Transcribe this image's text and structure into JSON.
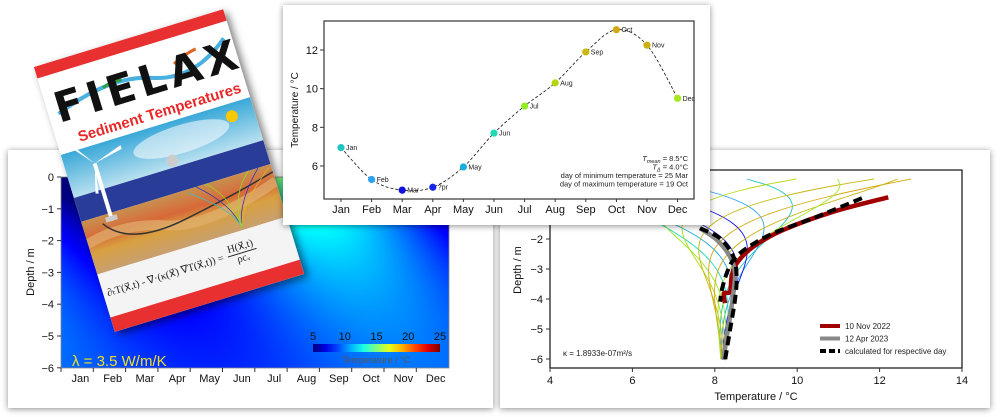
{
  "book": {
    "logo": "FIELAX",
    "subtitle": "Sediment Temperatures",
    "equation_lhs": "∂ₜT(x⃗,t) - ∇·(κ(x⃗) ∇T(x⃗,t)) =",
    "equation_num": "H(x⃗,t)",
    "equation_den": "ρcᵥ",
    "colors": {
      "band": "#e83030",
      "title": "#e82828"
    }
  },
  "chart_data": [
    {
      "type": "heatmap",
      "ylabel": "Depth / m",
      "ylim": [
        -6,
        0
      ],
      "yticks": [
        "0",
        "−1",
        "−2",
        "−3",
        "−4",
        "−5",
        "−6"
      ],
      "xticks": [
        "Jan",
        "Feb",
        "Mar",
        "Apr",
        "May",
        "Jun",
        "Jul",
        "Aug",
        "Sep",
        "Oct",
        "Nov",
        "Dec"
      ],
      "colorbar": {
        "label": "Temperature / °C",
        "ticks": [
          "5",
          "10",
          "15",
          "20",
          "25"
        ],
        "range": [
          5,
          25
        ],
        "colormap": "jet"
      },
      "annotation": "λ = 3.5 W/m/K",
      "annotation_color": "#f0e020"
    },
    {
      "type": "line",
      "ylabel": "Temperature / °C",
      "categories": [
        "Jan",
        "Feb",
        "Mar",
        "Apr",
        "May",
        "Jun",
        "Jul",
        "Aug",
        "Sep",
        "Oct",
        "Nov",
        "Dec"
      ],
      "point_labels": [
        "Jan",
        "Feb",
        "Mar",
        "?pr",
        "May",
        "Jun",
        "Jul",
        "Aug",
        "Sep",
        "Oct",
        "Nov",
        "Dec"
      ],
      "values": [
        6.95,
        5.3,
        4.75,
        4.9,
        5.95,
        7.7,
        9.1,
        10.3,
        11.9,
        13.05,
        12.25,
        9.5
      ],
      "colors": [
        "#20c4c4",
        "#2aa4f0",
        "#1010e0",
        "#1424ea",
        "#1aaedc",
        "#20dab4",
        "#90ee20",
        "#b4d810",
        "#c8b810",
        "#d4a810",
        "#c8b010",
        "#a4e820"
      ],
      "ylim": [
        4.3,
        13.5
      ],
      "yticks": [
        6,
        8,
        10,
        12
      ],
      "line_style": "dashed",
      "annotations": [
        {
          "symbol": "T",
          "sub": "mean",
          "rest": " = 8.5°C"
        },
        {
          "symbol": "T",
          "sub": "Δ",
          "rest": " = 4.0°C"
        },
        {
          "symbol": "",
          "sub": "",
          "rest": "day of minimum temperature = 25 Mar"
        },
        {
          "symbol": "",
          "sub": "",
          "rest": "day of maximum temperature = 19 Oct"
        }
      ]
    },
    {
      "type": "line",
      "xlabel": "Temperature / °C",
      "ylabel": "Depth / m",
      "xlim": [
        4,
        14
      ],
      "ylim": [
        -6.3,
        0.3
      ],
      "xticks": [
        "4",
        "6",
        "8",
        "10",
        "12",
        "14"
      ],
      "yticks": [
        "−2",
        "−3",
        "−4",
        "−5",
        "−6"
      ],
      "annotation": "κ = 1.8933e-07m²/s",
      "legend": "bottom-right",
      "monthly_profile_colors": [
        "#20c4c4",
        "#2aa4f0",
        "#1010e0",
        "#1424ea",
        "#1aaedc",
        "#20dab4",
        "#90ee20",
        "#b4d810",
        "#c8b810",
        "#d4a810",
        "#c8b010",
        "#a4e820"
      ],
      "series": [
        {
          "name": "10 Nov 2022",
          "color": "#a00000",
          "dashed": false,
          "points": [
            [
              12.21,
              -0.61
            ],
            [
              10.88,
              -1.09
            ],
            [
              9.66,
              -1.7
            ],
            [
              8.93,
              -2.26
            ],
            [
              8.53,
              -2.81
            ],
            [
              8.41,
              -3.26
            ],
            [
              8.37,
              -3.76
            ],
            [
              8.22,
              -3.81
            ],
            [
              8.25,
              -4.14
            ]
          ]
        },
        {
          "name": "12 Apr 2023",
          "color": "#888888",
          "dashed": false,
          "points": [
            [
              7.64,
              -1.64
            ],
            [
              8.05,
              -2.03
            ],
            [
              8.37,
              -2.59
            ],
            [
              8.49,
              -3.14
            ],
            [
              8.45,
              -3.81
            ],
            [
              8.37,
              -4.59
            ],
            [
              8.29,
              -5.26
            ],
            [
              8.21,
              -6.03
            ]
          ]
        },
        {
          "name": "calculated for respective day",
          "color": "#000000",
          "dashed": true,
          "segments": [
            [
              [
                11.57,
                -0.64
              ],
              [
                10.47,
                -1.26
              ],
              [
                9.42,
                -1.81
              ],
              [
                8.77,
                -2.31
              ],
              [
                8.45,
                -2.7
              ],
              [
                8.29,
                -3.14
              ],
              [
                8.17,
                -3.7
              ],
              [
                8.13,
                -4.09
              ]
            ],
            [
              [
                7.64,
                -1.64
              ],
              [
                8.13,
                -1.98
              ],
              [
                8.45,
                -2.59
              ],
              [
                8.53,
                -3.26
              ],
              [
                8.49,
                -4.03
              ],
              [
                8.37,
                -5.03
              ],
              [
                8.25,
                -6.03
              ]
            ]
          ]
        }
      ]
    }
  ]
}
